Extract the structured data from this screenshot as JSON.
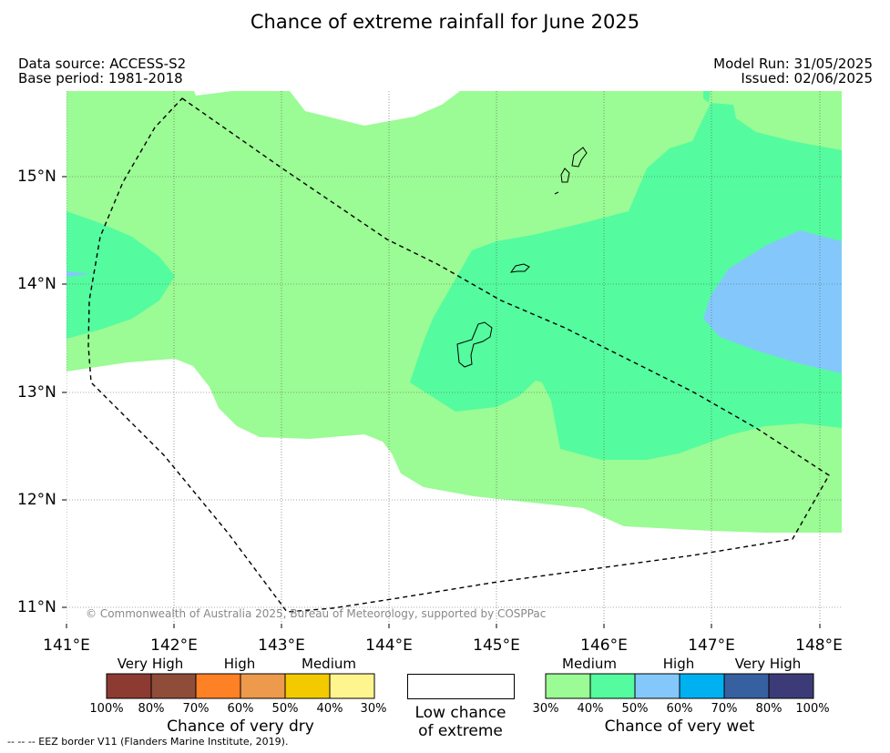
{
  "title": "Chance of extreme rainfall for June 2025",
  "meta": {
    "source": "Data source: ACCESS-S2",
    "base_period": "Base period: 1981-2018",
    "model_run": "Model Run: 31/05/2025",
    "issued": "Issued: 02/06/2025"
  },
  "map": {
    "lat_labels": [
      "15°N",
      "14°N",
      "13°N",
      "12°N",
      "11°N"
    ],
    "lon_labels": [
      "141°E",
      "142°E",
      "143°E",
      "144°E",
      "145°E",
      "146°E",
      "147°E",
      "148°E"
    ],
    "copyright": "© Commonwealth of Australia 2025, Bureau of Meteorology, supported by COSPPac",
    "colors": {
      "c30_40": "#9bfb94",
      "c40_50": "#55fb9f",
      "c50_60": "#84c8fb",
      "background": "#ffffff"
    }
  },
  "legend": {
    "dry": {
      "title": "Chance of very dry",
      "levels": [
        "Very High",
        "High",
        "Medium"
      ],
      "colors": [
        "#8d3a33",
        "#8f4c38",
        "#ff8126",
        "#ed9a4c",
        "#f3ca00",
        "#fff58e"
      ],
      "ticks": [
        "100%",
        "80%",
        "70%",
        "60%",
        "50%",
        "40%",
        "30%"
      ]
    },
    "low": {
      "line1": "Low chance",
      "line2": "of extreme"
    },
    "wet": {
      "title": "Chance of very wet",
      "levels": [
        "Medium",
        "High",
        "Very High"
      ],
      "colors": [
        "#9bfb94",
        "#55fb9f",
        "#84c8fb",
        "#00b1f2",
        "#3660a0",
        "#3d3b77"
      ],
      "ticks": [
        "30%",
        "40%",
        "50%",
        "60%",
        "70%",
        "80%",
        "100%"
      ]
    }
  },
  "footnote": "--  --  -- EEZ border V11 (Flanders Marine Institute, 2019)."
}
